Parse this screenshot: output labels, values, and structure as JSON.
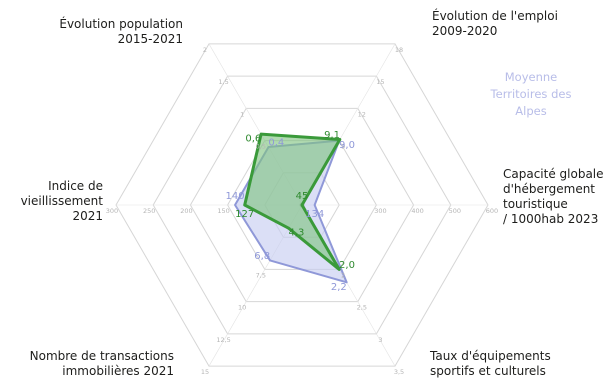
{
  "chart_data": {
    "type": "radar",
    "axes": [
      {
        "label_lines": [
          "Évolution population",
          "2015-2021"
        ],
        "ticks": [
          "2",
          "1,5",
          "1",
          "0,5",
          "0"
        ],
        "territory": 0.6,
        "average": 0.4,
        "territory_label": "0,6",
        "average_label": "0,4"
      },
      {
        "label_lines": [
          "Évolution de l'emploi",
          "2009-2020"
        ],
        "ticks": [
          "18",
          "15",
          "12",
          "9",
          "6"
        ],
        "territory": 9.1,
        "average": 9.0,
        "territory_label": "9,1",
        "average_label": "9,0"
      },
      {
        "label_lines": [
          "Capacité globale",
          "d'hébergement",
          "touristique",
          "/ 1000hab 2023"
        ],
        "ticks": [
          "600",
          "500",
          "400",
          "300",
          "200"
        ],
        "territory": 45,
        "average": 134,
        "territory_label": "45",
        "average_label": "134"
      },
      {
        "label_lines": [
          "Taux d'équipements",
          "sportifs et culturels"
        ],
        "ticks": [
          "3,5",
          "3",
          "2,5",
          "2",
          "1,5"
        ],
        "territory": 2.0,
        "average": 2.2,
        "territory_label": "2,0",
        "average_label": "2,2"
      },
      {
        "label_lines": [
          "Nombre de transactions",
          "immobilières 2021"
        ],
        "ticks": [
          "15",
          "12,5",
          "10",
          "7,5",
          "5"
        ],
        "territory": 4.3,
        "average": 6.8,
        "territory_label": "4,3",
        "average_label": "6,8"
      },
      {
        "label_lines": [
          "Indice de",
          "vieillissement",
          "2021"
        ],
        "ticks": [
          "300",
          "250",
          "200",
          "150",
          "100"
        ],
        "territory": 127,
        "average": 140,
        "territory_label": "127",
        "average_label": "140"
      }
    ],
    "series": [
      {
        "key": "territory",
        "color": "#3a9a3a",
        "fill": "#7fc47f"
      },
      {
        "key": "average",
        "name": "Moyenne Territoires des Alpes",
        "color": "#8f98d8",
        "fill": "#c5cbf0"
      }
    ],
    "legend_lines": [
      "Moyenne",
      "Territoires des",
      "Alpes"
    ],
    "legend_position": "right"
  }
}
